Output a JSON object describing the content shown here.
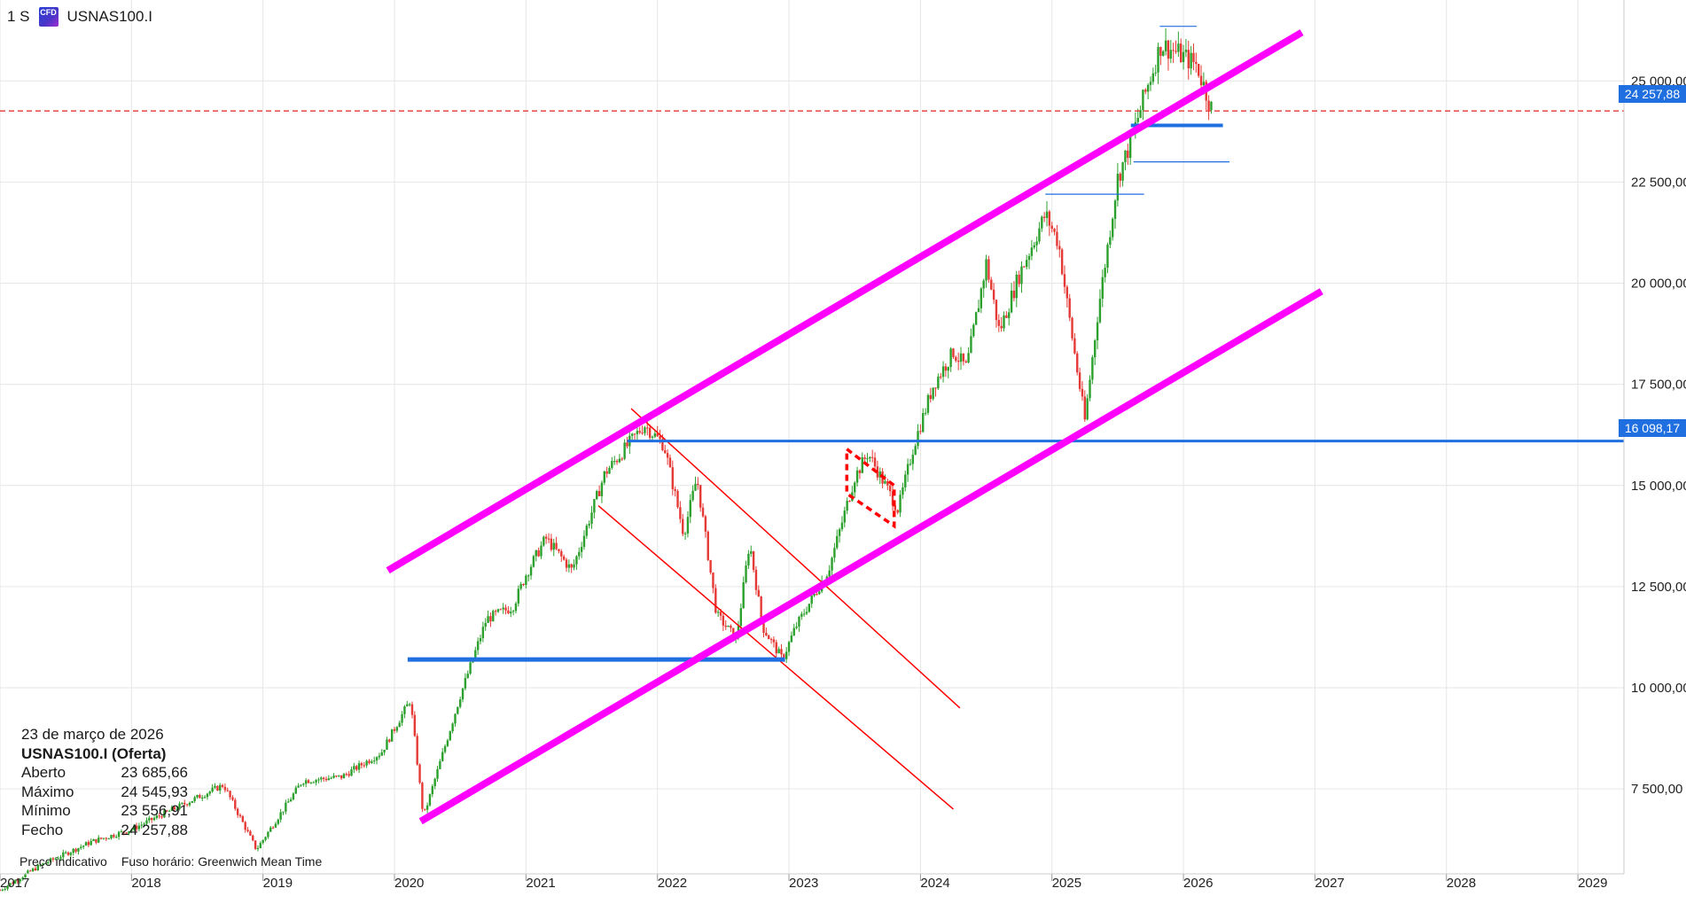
{
  "header": {
    "timeframe": "1 S",
    "instrument_badge": "CFD",
    "symbol": "USNAS100.I"
  },
  "info_panel": {
    "date": "23 de março de 2026",
    "title": "USNAS100.I (Oferta)",
    "rows": [
      {
        "label": "Aberto",
        "value": "23 685,66"
      },
      {
        "label": "Máximo",
        "value": "24 545,93"
      },
      {
        "label": "Mínimo",
        "value": "23 556,91"
      },
      {
        "label": "Fecho",
        "value": "24 257,88"
      }
    ]
  },
  "footer": {
    "price_note": "Preço indicativo",
    "timezone": "Fuso horário: Greenwich Mean Time"
  },
  "price_tags": {
    "last_price": "24 257,88",
    "support_level": "16 098,17"
  },
  "colors": {
    "up": "#2ca02c",
    "down": "#e53935",
    "channel": "#ff00ff",
    "level": "#1f6fe0",
    "trend": "#ff0000",
    "grid": "#e6e6e6"
  },
  "chart_data": {
    "type": "candlestick",
    "x_axis": {
      "ticks": [
        "2017",
        "2018",
        "2019",
        "2020",
        "2021",
        "2022",
        "2023",
        "2024",
        "2025",
        "2026",
        "2027",
        "2028",
        "2029"
      ],
      "range": [
        2017.0,
        2029.35
      ]
    },
    "y_axis": {
      "ticks": [
        7500,
        10000,
        12500,
        15000,
        17500,
        20000,
        22500,
        25000
      ],
      "tick_labels": [
        "7 500,00",
        "10 000,00",
        "12 500,00",
        "15 000,00",
        "17 500,00",
        "20 000,00",
        "22 500,00",
        "25 000,00"
      ],
      "range": [
        5400,
        27000
      ],
      "position": "right"
    },
    "price_path": [
      [
        2017.0,
        5000
      ],
      [
        2017.3,
        5600
      ],
      [
        2017.7,
        6200
      ],
      [
        2018.0,
        6500
      ],
      [
        2018.7,
        7600
      ],
      [
        2018.95,
        6000
      ],
      [
        2019.3,
        7700
      ],
      [
        2019.6,
        7800
      ],
      [
        2019.9,
        8400
      ],
      [
        2020.12,
        9700
      ],
      [
        2020.22,
        6800
      ],
      [
        2020.5,
        9800
      ],
      [
        2020.7,
        11700
      ],
      [
        2020.9,
        12000
      ],
      [
        2021.0,
        12800
      ],
      [
        2021.15,
        13700
      ],
      [
        2021.35,
        12900
      ],
      [
        2021.6,
        15300
      ],
      [
        2021.9,
        16500
      ],
      [
        2022.05,
        16000
      ],
      [
        2022.2,
        13800
      ],
      [
        2022.3,
        15200
      ],
      [
        2022.45,
        11800
      ],
      [
        2022.6,
        11200
      ],
      [
        2022.7,
        13600
      ],
      [
        2022.8,
        11500
      ],
      [
        2022.95,
        10700
      ],
      [
        2023.05,
        11500
      ],
      [
        2023.3,
        12900
      ],
      [
        2023.5,
        15200
      ],
      [
        2023.6,
        15800
      ],
      [
        2023.75,
        14900
      ],
      [
        2023.83,
        14400
      ],
      [
        2023.95,
        16000
      ],
      [
        2024.1,
        17500
      ],
      [
        2024.25,
        18300
      ],
      [
        2024.35,
        17900
      ],
      [
        2024.5,
        20500
      ],
      [
        2024.6,
        18800
      ],
      [
        2024.75,
        20200
      ],
      [
        2024.95,
        21700
      ],
      [
        2025.05,
        21000
      ],
      [
        2025.12,
        19400
      ],
      [
        2025.25,
        16600
      ],
      [
        2025.35,
        19300
      ],
      [
        2025.5,
        22600
      ],
      [
        2025.6,
        23500
      ],
      [
        2025.7,
        24600
      ],
      [
        2025.83,
        25900
      ],
      [
        2025.95,
        25700
      ],
      [
        2026.1,
        25400
      ],
      [
        2026.22,
        24257.88
      ]
    ],
    "drawings": {
      "channel_upper": [
        [
          2019.95,
          12900
        ],
        [
          2026.9,
          26200
        ]
      ],
      "channel_lower": [
        [
          2020.2,
          6700
        ],
        [
          2027.05,
          19800
        ]
      ],
      "support_line": {
        "from": 2021.77,
        "to": 2029.35,
        "price": 16098.17
      },
      "support_2022": {
        "from": 2020.1,
        "to": 2022.97,
        "price": 10700
      },
      "support_2025": {
        "from": 2025.6,
        "to": 2026.3,
        "price": 23900
      },
      "trend_down_upper": [
        [
          2021.8,
          16900
        ],
        [
          2024.3,
          9500
        ]
      ],
      "trend_down_lower": [
        [
          2021.55,
          14500
        ],
        [
          2024.25,
          7000
        ]
      ],
      "flag_2023": [
        [
          2023.44,
          15900
        ],
        [
          2023.8,
          15000
        ],
        [
          2023.8,
          14000
        ],
        [
          2023.44,
          14800
        ]
      ],
      "box_2025_top": {
        "from": 2025.82,
        "to": 2026.1,
        "price": 26350
      },
      "box_2025_bottom": {
        "from": 2025.62,
        "to": 2026.35,
        "price": 23000
      },
      "range_2024_top": {
        "from": 2024.95,
        "to": 2025.7,
        "price": 22200
      },
      "last_price_line": 24257.88
    }
  }
}
